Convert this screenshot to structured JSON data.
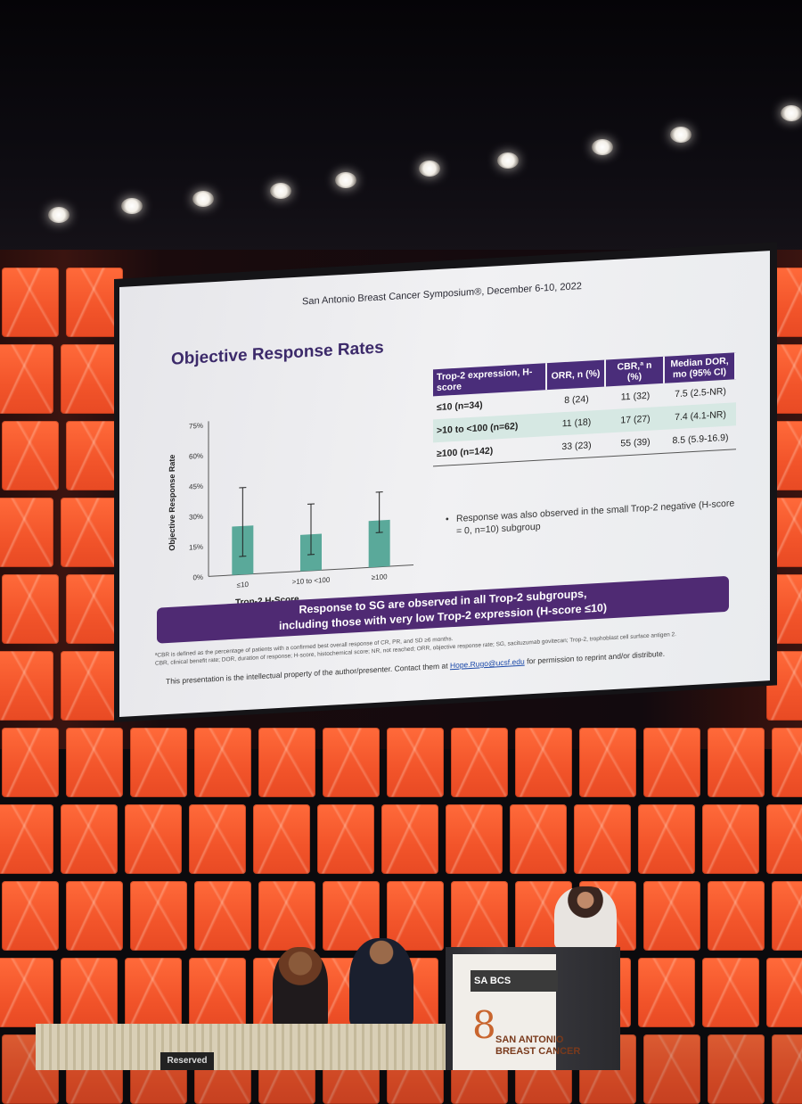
{
  "slide": {
    "header": "San Antonio Breast Cancer Symposium®, December 6-10, 2022",
    "title": "Objective Response Rates",
    "table": {
      "headers": [
        "Trop-2 expression, H-score",
        "ORR, n (%)",
        "CBR,ª n (%)",
        "Median DOR, mo (95% CI)"
      ],
      "rows": [
        [
          "≤10 (n=34)",
          "8 (24)",
          "11 (32)",
          "7.5 (2.5-NR)"
        ],
        [
          ">10 to <100 (n=62)",
          "11 (18)",
          "17 (27)",
          "7.4 (4.1-NR)"
        ],
        [
          "≥100 (n=142)",
          "33 (23)",
          "55 (39)",
          "8.5 (5.9-16.9)"
        ]
      ]
    },
    "note": "Response was also observed in the small Trop-2 negative (H-score = 0, n=10) subgroup",
    "banner_line1": "Response to SG are observed in all Trop-2 subgroups,",
    "banner_line2": "including those with very low Trop-2 expression (H-score ≤10)",
    "footnote1": "ªCBR is defined as the percentage of patients with a confirmed best overall response of CR, PR, and SD ≥6 months.",
    "footnote2": "CBR, clinical benefit rate; DOR, duration of response; H-score, histochemical score; NR, not reached; ORR, objective response rate; SG, sacituzumab govitecan; Trop-2, trophoblast cell surface antigen 2.",
    "ip_text": "This presentation is the intellectual property of the author/presenter. Contact them at",
    "ip_email": "Hope.Rugo@ucsf.edu",
    "ip_tail": "for permission to reprint and/or distribute."
  },
  "chart_data": {
    "type": "bar",
    "categories": [
      "≤10",
      ">10 to <100",
      "≥100"
    ],
    "values": [
      24,
      18,
      23
    ],
    "error_high": [
      43,
      33,
      37
    ],
    "error_low": [
      9,
      8,
      17
    ],
    "xlabel": "Trop-2 H-Score",
    "ylabel": "Objective Response Rate",
    "ylim": [
      0,
      75
    ],
    "yticks": [
      "0%",
      "15%",
      "30%",
      "45%",
      "60%",
      "75%"
    ],
    "color": "#5aa99a"
  },
  "stage": {
    "reserved_sign": "Reserved",
    "podium_logo": "SA BCS",
    "podium_text_line1": "SAN ANTONIO",
    "podium_text_line2": "BREAST CANCER"
  },
  "colors": {
    "accent": "#4a2d7a",
    "wall": "#f2542a",
    "bar": "#5aa99a"
  }
}
